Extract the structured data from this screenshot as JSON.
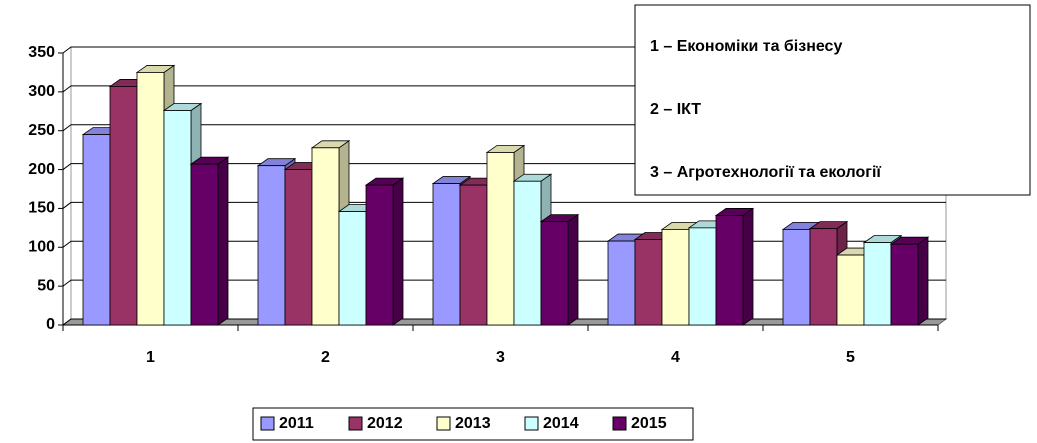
{
  "chart_data": {
    "type": "bar3d",
    "categories": [
      "1",
      "2",
      "3",
      "4",
      "5"
    ],
    "series": [
      {
        "name": "2011",
        "color": "#9999ff",
        "values": [
          245,
          205,
          182,
          108,
          123
        ]
      },
      {
        "name": "2012",
        "color": "#993366",
        "values": [
          307,
          200,
          180,
          110,
          124
        ]
      },
      {
        "name": "2013",
        "color": "#ffffcc",
        "values": [
          325,
          228,
          222,
          123,
          90
        ]
      },
      {
        "name": "2014",
        "color": "#ccffff",
        "values": [
          276,
          146,
          185,
          125,
          106
        ]
      },
      {
        "name": "2015",
        "color": "#660066",
        "values": [
          207,
          180,
          133,
          141,
          104
        ]
      }
    ],
    "ylim": [
      0,
      350
    ],
    "yticks": [
      0,
      50,
      100,
      150,
      200,
      250,
      300,
      350
    ],
    "grid": true,
    "legend": "bottom",
    "annotations": [
      "1 – Економіки та бізнесу",
      "2 – ІКТ",
      "3 – Агротехнології та екології"
    ]
  }
}
